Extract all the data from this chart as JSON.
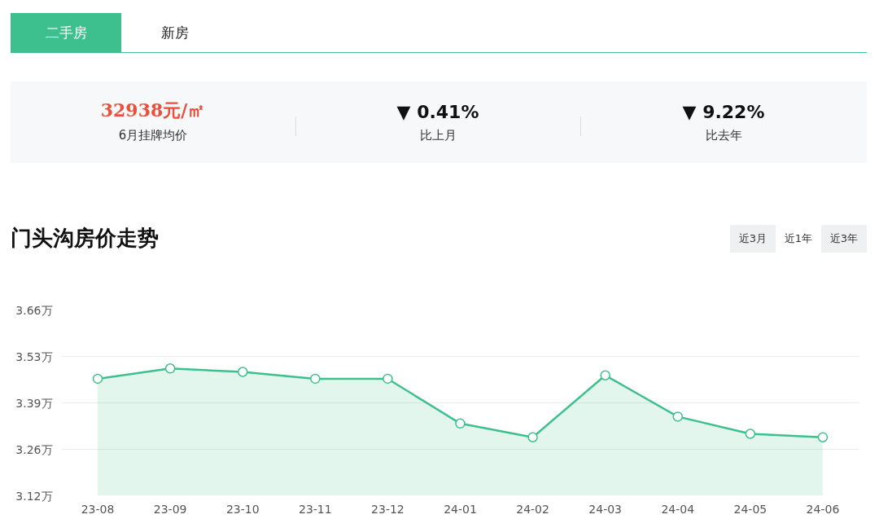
{
  "chart_data": {
    "type": "area",
    "title": "门头沟房价走势",
    "categories": [
      "23-08",
      "23-09",
      "23-10",
      "23-11",
      "23-12",
      "24-01",
      "24-02",
      "24-03",
      "24-04",
      "24-05",
      "24-06"
    ],
    "series": [
      {
        "color": "#3dc08e",
        "values": [
          3.46,
          3.49,
          3.48,
          3.46,
          3.46,
          3.33,
          3.29,
          3.47,
          3.35,
          3.3,
          3.29
        ]
      }
    ],
    "ylim": [
      3.12,
      3.66
    ],
    "yticks": [
      {
        "value": 3.12,
        "label": "3.12万"
      },
      {
        "value": 3.255,
        "label": "3.26万"
      },
      {
        "value": 3.39,
        "label": "3.39万"
      },
      {
        "value": 3.525,
        "label": "3.53万"
      },
      {
        "value": 3.66,
        "label": "3.66万"
      }
    ],
    "grid": "y",
    "marker": "circle",
    "line_style": "solid",
    "annotations": [
      "二手房",
      "新房",
      "32938元/㎡",
      "6月挂牌均价",
      "▼ 0.41%",
      "比上月",
      "▼ 9.22%",
      "比去年",
      "近3月",
      "近1年",
      "近3年"
    ]
  }
}
